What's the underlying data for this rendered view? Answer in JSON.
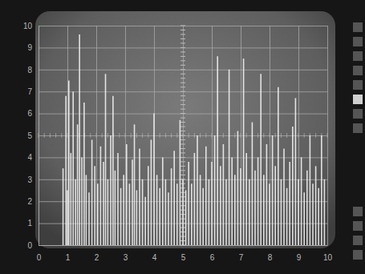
{
  "chart_data": {
    "type": "bar",
    "x": [
      0.85,
      0.95,
      1.0,
      1.05,
      1.12,
      1.2,
      1.28,
      1.35,
      1.42,
      1.5,
      1.58,
      1.65,
      1.75,
      1.85,
      1.95,
      2.05,
      2.15,
      2.25,
      2.32,
      2.4,
      2.5,
      2.58,
      2.65,
      2.75,
      2.85,
      2.95,
      3.05,
      3.15,
      3.25,
      3.32,
      3.4,
      3.5,
      3.6,
      3.7,
      3.8,
      3.9,
      4.0,
      4.1,
      4.2,
      4.3,
      4.4,
      4.5,
      4.6,
      4.7,
      4.8,
      4.9,
      5.0,
      5.1,
      5.2,
      5.3,
      5.4,
      5.5,
      5.6,
      5.7,
      5.8,
      5.9,
      6.0,
      6.1,
      6.2,
      6.3,
      6.4,
      6.5,
      6.6,
      6.7,
      6.8,
      6.9,
      7.0,
      7.1,
      7.2,
      7.3,
      7.4,
      7.5,
      7.6,
      7.7,
      7.8,
      7.9,
      8.0,
      8.1,
      8.2,
      8.3,
      8.4,
      8.5,
      8.6,
      8.7,
      8.8,
      8.9,
      9.0,
      9.1,
      9.2,
      9.3,
      9.4,
      9.5,
      9.6,
      9.7,
      9.8,
      9.9
    ],
    "values": [
      3.5,
      6.8,
      2.5,
      7.5,
      4.2,
      7.0,
      3.0,
      5.5,
      9.6,
      4.0,
      6.5,
      3.2,
      2.4,
      4.8,
      3.6,
      2.8,
      4.5,
      3.8,
      7.8,
      3.0,
      5.0,
      6.8,
      3.4,
      4.2,
      2.6,
      3.2,
      4.6,
      2.8,
      3.9,
      5.5,
      2.5,
      4.4,
      3.0,
      2.2,
      3.6,
      4.8,
      6.0,
      3.2,
      2.6,
      4.0,
      3.0,
      2.4,
      3.5,
      4.3,
      2.8,
      5.7,
      3.0,
      2.5,
      3.8,
      2.8,
      4.2,
      5.0,
      3.2,
      2.6,
      4.5,
      3.0,
      3.8,
      5.0,
      8.6,
      3.6,
      4.6,
      3.0,
      8.0,
      4.0,
      3.2,
      5.2,
      3.5,
      8.5,
      4.2,
      3.0,
      5.6,
      3.4,
      4.0,
      7.8,
      3.2,
      4.6,
      2.8,
      5.0,
      3.6,
      7.2,
      3.0,
      4.4,
      2.6,
      3.8,
      5.4,
      6.7,
      3.0,
      4.0,
      2.4,
      3.4,
      5.0,
      2.8,
      3.6,
      2.6,
      5.0,
      3.0
    ],
    "color": "#f0f0f0",
    "xlim": [
      0,
      10
    ],
    "ylim": [
      0,
      10
    ],
    "xticks": [
      0,
      1,
      2,
      3,
      4,
      5,
      6,
      7,
      8,
      9,
      10
    ],
    "yticks": [
      0,
      1,
      2,
      3,
      4,
      5,
      6,
      7,
      8,
      9,
      10
    ],
    "grid": true
  }
}
